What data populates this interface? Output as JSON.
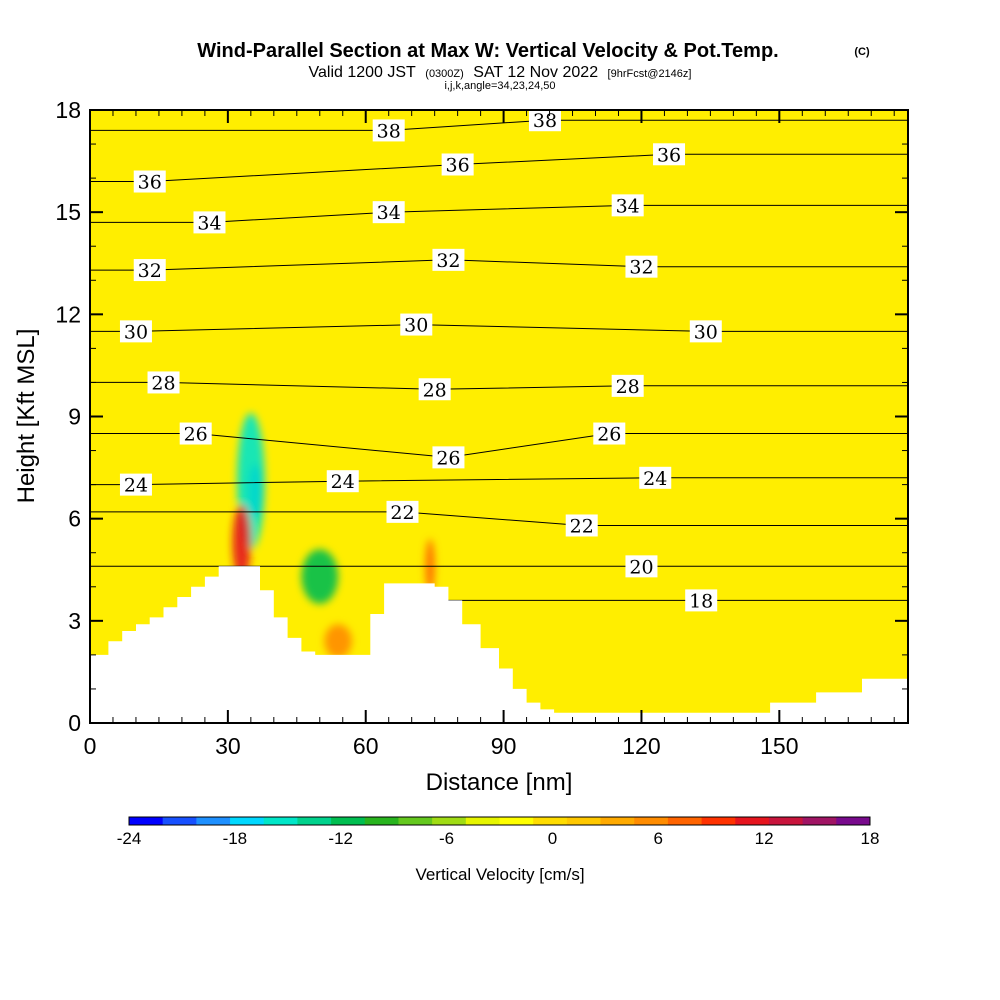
{
  "title": {
    "main": "Wind-Parallel Section at Max W: Vertical Velocity & Pot.Temp.",
    "copyright": "(C)",
    "valid_prefix": "Valid 1200 JST",
    "valid_utc": "(0300Z)",
    "valid_date": "SAT 12 Nov 2022",
    "forecast": "[9hrFcst@2146z]",
    "indices": "i,j,k,angle=34,23,24,50"
  },
  "chart_data": {
    "type": "heatmap",
    "xlabel": "Distance [nm]",
    "ylabel": "Height [Kft MSL]",
    "xlim": [
      0,
      178
    ],
    "ylim": [
      0,
      18
    ],
    "x_ticks": [
      0,
      30,
      60,
      90,
      120,
      150
    ],
    "x_tick_labels": [
      "0",
      "30",
      "60",
      "90",
      "120",
      "150"
    ],
    "y_ticks": [
      0,
      3,
      6,
      9,
      12,
      15,
      18
    ],
    "y_tick_labels": [
      "0",
      "3",
      "6",
      "9",
      "12",
      "15",
      "18"
    ],
    "terrain": {
      "x": [
        0,
        4,
        7,
        10,
        13,
        16,
        19,
        22,
        25,
        28,
        33,
        37,
        40,
        43,
        46,
        49,
        55,
        58,
        61,
        64,
        70,
        75,
        78,
        81,
        85,
        89,
        92,
        95,
        98,
        101,
        103,
        105,
        110,
        118,
        130,
        142,
        148,
        158,
        168,
        178
      ],
      "height_kft": [
        2.0,
        2.4,
        2.7,
        2.9,
        3.1,
        3.4,
        3.7,
        4.0,
        4.3,
        4.6,
        4.6,
        3.9,
        3.1,
        2.5,
        2.1,
        2.0,
        2.0,
        2.0,
        3.2,
        4.1,
        4.1,
        4.0,
        3.6,
        2.9,
        2.2,
        1.6,
        1.0,
        0.6,
        0.4,
        0.3,
        0.3,
        0.3,
        0.3,
        0.3,
        0.3,
        0.3,
        0.6,
        0.9,
        1.3,
        1.3
      ]
    },
    "theta_contours": [
      {
        "label": "18",
        "x": 133,
        "y": 3.6
      },
      {
        "label": "20",
        "x": 120,
        "y": 4.6
      },
      {
        "label": "22",
        "x": 107,
        "y": 5.8
      },
      {
        "label": "22",
        "x": 68,
        "y": 6.2
      },
      {
        "label": "24",
        "x": 10,
        "y": 7.0
      },
      {
        "label": "24",
        "x": 55,
        "y": 7.1
      },
      {
        "label": "24",
        "x": 123,
        "y": 7.2
      },
      {
        "label": "26",
        "x": 23,
        "y": 8.5
      },
      {
        "label": "26",
        "x": 78,
        "y": 7.8
      },
      {
        "label": "26",
        "x": 113,
        "y": 8.5
      },
      {
        "label": "28",
        "x": 16,
        "y": 10.0
      },
      {
        "label": "28",
        "x": 75,
        "y": 9.8
      },
      {
        "label": "28",
        "x": 117,
        "y": 9.9
      },
      {
        "label": "30",
        "x": 10,
        "y": 11.5
      },
      {
        "label": "30",
        "x": 71,
        "y": 11.7
      },
      {
        "label": "30",
        "x": 134,
        "y": 11.5
      },
      {
        "label": "32",
        "x": 13,
        "y": 13.3
      },
      {
        "label": "32",
        "x": 78,
        "y": 13.6
      },
      {
        "label": "32",
        "x": 120,
        "y": 13.4
      },
      {
        "label": "34",
        "x": 26,
        "y": 14.7
      },
      {
        "label": "34",
        "x": 65,
        "y": 15.0
      },
      {
        "label": "34",
        "x": 117,
        "y": 15.2
      },
      {
        "label": "36",
        "x": 13,
        "y": 15.9
      },
      {
        "label": "36",
        "x": 80,
        "y": 16.4
      },
      {
        "label": "36",
        "x": 126,
        "y": 16.7
      },
      {
        "label": "38",
        "x": 65,
        "y": 17.4
      },
      {
        "label": "38",
        "x": 99,
        "y": 17.7
      }
    ],
    "colorbar": {
      "label": "Vertical Velocity [cm/s]",
      "min": -24,
      "max": 18,
      "step": 2,
      "tick_values": [
        -24,
        -18,
        -12,
        -6,
        0,
        6,
        12,
        18
      ],
      "tick_labels": [
        "-24",
        "-18",
        "-12",
        "-6",
        "0",
        "6",
        "12",
        "18"
      ],
      "colors": [
        "#0000ff",
        "#1750ff",
        "#1e90ff",
        "#00d8ff",
        "#00e6c8",
        "#00d28c",
        "#00be50",
        "#28b41e",
        "#64c81e",
        "#a0dc14",
        "#e6f500",
        "#ffff00",
        "#ffdc00",
        "#ffc800",
        "#ffaa00",
        "#ff8c00",
        "#ff6400",
        "#ff3200",
        "#e6141e",
        "#c8143c",
        "#a01464",
        "#780a8c"
      ]
    },
    "velocity_features": [
      {
        "cx": 36,
        "cy": 6.8,
        "rx": 1.5,
        "ry": 0.8,
        "value": -22
      },
      {
        "cx": 35,
        "cy": 7.1,
        "rx": 3,
        "ry": 2.0,
        "value": -16
      },
      {
        "cx": 50,
        "cy": 4.3,
        "rx": 4,
        "ry": 0.8,
        "value": -11
      },
      {
        "cx": 33,
        "cy": 5.3,
        "rx": 2,
        "ry": 1.1,
        "value": 13
      },
      {
        "cx": 74,
        "cy": 4.6,
        "rx": 1,
        "ry": 0.8,
        "value": 9
      },
      {
        "cx": 54,
        "cy": 2.4,
        "rx": 3,
        "ry": 0.5,
        "value": 7
      }
    ]
  }
}
